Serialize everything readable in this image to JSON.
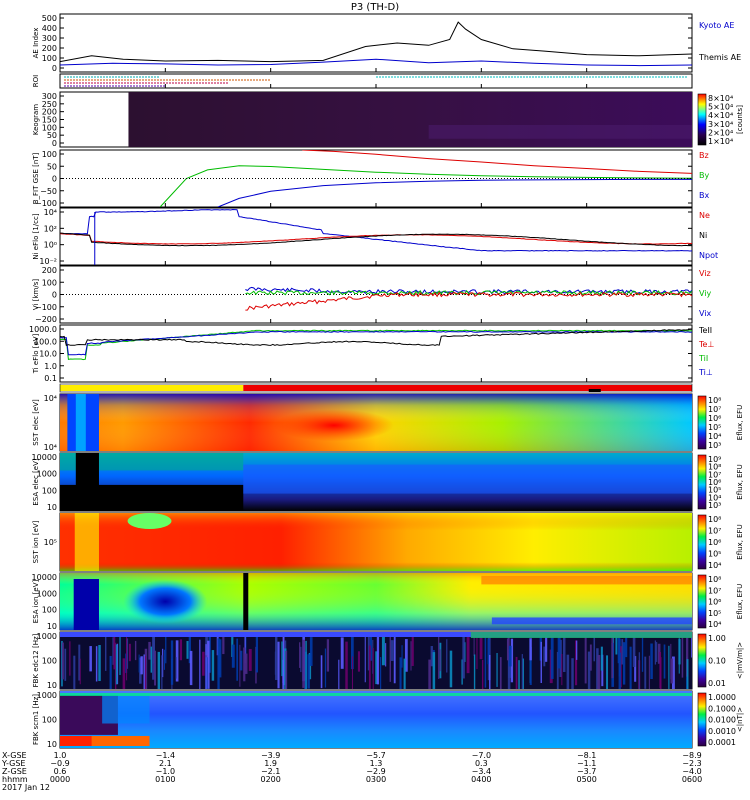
{
  "chart_data": {
    "type": "line",
    "title": "P3 (TH-D)",
    "panels": [
      {
        "id": "ae",
        "ylabel": "AE Index",
        "ylim": [
          0,
          500
        ],
        "yticks": [
          "500",
          "400",
          "300",
          "200",
          "100",
          "0"
        ],
        "series": [
          {
            "name": "Kyoto AE",
            "color": "#0000cc",
            "x": [
              0,
              0.5,
              1,
              1.5,
              2,
              2.5,
              3,
              3.5,
              4,
              4.5,
              5,
              5.5,
              6
            ],
            "y": [
              60,
              75,
              70,
              60,
              65,
              85,
              110,
              80,
              95,
              75,
              60,
              55,
              60
            ]
          },
          {
            "name": "Themis AE",
            "color": "#000000",
            "x": [
              0,
              0.3,
              0.6,
              1,
              1.5,
              2,
              2.5,
              2.9,
              3.2,
              3.5,
              3.7,
              3.78,
              3.85,
              4,
              4.3,
              4.6,
              5,
              5.5,
              6
            ],
            "y": [
              90,
              140,
              110,
              95,
              100,
              90,
              100,
              220,
              250,
              230,
              280,
              430,
              370,
              280,
              200,
              180,
              150,
              140,
              155
            ]
          }
        ]
      },
      {
        "id": "roi",
        "ylabel": "ROI"
      },
      {
        "id": "keogram",
        "ylabel": "Keogram",
        "yticks": [
          "300",
          "250",
          "200",
          "150",
          "100",
          "50",
          "0"
        ],
        "colorbar": {
          "label": "[counts]",
          "ticks": [
            "8×10⁴",
            "5×10⁴",
            "4×10⁴",
            "3×10⁴",
            "2×10⁴",
            "1×10⁴"
          ]
        }
      },
      {
        "id": "bfit",
        "ylabel": "B_FIT GSE [nT]",
        "ylim": [
          -100,
          100
        ],
        "yticks": [
          "100",
          "50",
          "0",
          "−50",
          "−100"
        ],
        "series": [
          {
            "name": "Bz",
            "color": "#dd0000",
            "x": [
              2.3,
              2.6,
              3,
              3.5,
              4,
              4.5,
              5,
              5.5,
              6
            ],
            "y": [
              100,
              95,
              85,
              70,
              58,
              45,
              35,
              25,
              18
            ]
          },
          {
            "name": "By",
            "color": "#00bb00",
            "x": [
              0.95,
              1.05,
              1.2,
              1.4,
              1.7,
              2,
              2.5,
              3,
              3.5,
              4,
              4.5,
              5,
              5.5,
              6
            ],
            "y": [
              -100,
              -60,
              0,
              30,
              45,
              42,
              32,
              22,
              15,
              10,
              6,
              4,
              2,
              1
            ]
          },
          {
            "name": "Bx",
            "color": "#0000cc",
            "x": [
              1.5,
              1.7,
              2,
              2.5,
              3,
              3.5,
              4,
              4.5,
              5,
              5.5,
              6
            ],
            "y": [
              -100,
              -70,
              -45,
              -25,
              -15,
              -10,
              -6,
              -5,
              -4,
              -3,
              -3
            ]
          }
        ]
      },
      {
        "id": "ni",
        "ylabel": "Ni eFlo [1/cc]",
        "yticks": [
          "10⁴",
          "10²",
          "10⁰",
          "10⁻²"
        ],
        "series_names": [
          "Ne",
          "Ni",
          "Npot"
        ],
        "series_colors": [
          "#dd0000",
          "#000000",
          "#0000cc"
        ]
      },
      {
        "id": "vi",
        "ylabel": "Vi [km/s]",
        "ylim": [
          -200,
          200
        ],
        "yticks": [
          "200",
          "100",
          "0",
          "−100",
          "−200"
        ],
        "series_names": [
          "Viz",
          "Viy",
          "Vix"
        ],
        "series_colors": [
          "#dd0000",
          "#00bb00",
          "#0000cc"
        ]
      },
      {
        "id": "ti",
        "ylabel": "Ti eFlo [eV]",
        "yticks": [
          "1000.0",
          "100.0",
          "10.0",
          "1.0",
          "0.1"
        ],
        "series_names": [
          "TeII",
          "Te⊥",
          "TiI",
          "Ti⊥"
        ],
        "series_colors": [
          "#000000",
          "#dd0000",
          "#00bb00",
          "#0000cc"
        ]
      },
      {
        "id": "sst_e",
        "ylabel": "SST elec [eV]",
        "yticks": [
          "10⁴",
          "10⁴"
        ],
        "colorbar": {
          "label": "Eflux, EFU",
          "ticks": [
            "10⁸",
            "10⁷",
            "10⁶",
            "10⁵",
            "10⁴",
            "10³"
          ]
        }
      },
      {
        "id": "esa_e",
        "ylabel": "ESA elec [eV]",
        "yticks": [
          "10000",
          "1000",
          "100",
          "10"
        ],
        "colorbar": {
          "label": "Eflux, EFU",
          "ticks": [
            "10⁹",
            "10⁸",
            "10⁷",
            "10⁶",
            "10⁵",
            "10⁴",
            "10³"
          ]
        }
      },
      {
        "id": "sst_i",
        "ylabel": "SST ion [eV]",
        "yticks": [
          "10⁵"
        ],
        "colorbar": {
          "label": "Eflux, EFU",
          "ticks": [
            "10⁸",
            "10⁷",
            "10⁶",
            "10⁵",
            "10⁴"
          ]
        }
      },
      {
        "id": "esa_i",
        "ylabel": "ESA ion [eV]",
        "yticks": [
          "10000",
          "1000",
          "100",
          "10"
        ],
        "colorbar": {
          "label": "Eflux, EFU",
          "ticks": [
            "10⁸",
            "10⁷",
            "10⁶",
            "10⁵",
            "10⁴"
          ]
        }
      },
      {
        "id": "fbk_e",
        "ylabel": "FBK edc12 [Hz]",
        "yticks": [
          "1000",
          "100",
          "10"
        ],
        "colorbar": {
          "label": "<|mV/m|>",
          "ticks": [
            "1.00",
            "0.10",
            "0.01"
          ]
        }
      },
      {
        "id": "fbk_b",
        "ylabel": "FBK scm1 [Hz]",
        "yticks": [
          "1000",
          "100",
          "10"
        ],
        "colorbar": {
          "label": "<|nT|>",
          "ticks": [
            "1.0000",
            "0.1000",
            "0.0100",
            "0.0010",
            "0.0001"
          ]
        }
      }
    ],
    "x_axis": {
      "row_labels": [
        "X-GSE",
        "Y-GSE",
        "Z-GSE",
        "hhmm",
        "2017 Jan 12"
      ],
      "columns": [
        [
          "1.0",
          "−0.9",
          "0.6",
          "0000"
        ],
        [
          "−1.4",
          "2.1",
          "−1.0",
          "0100"
        ],
        [
          "−3.9",
          "1.9",
          "−2.1",
          "0200"
        ],
        [
          "−5.7",
          "1.3",
          "−2.9",
          "0300"
        ],
        [
          "−7.0",
          "0.3",
          "−3.4",
          "0400"
        ],
        [
          "−8.1",
          "−1.1",
          "−3.7",
          "0500"
        ],
        [
          "−8.9",
          "−2.3",
          "−4.0",
          "0600"
        ]
      ]
    }
  }
}
